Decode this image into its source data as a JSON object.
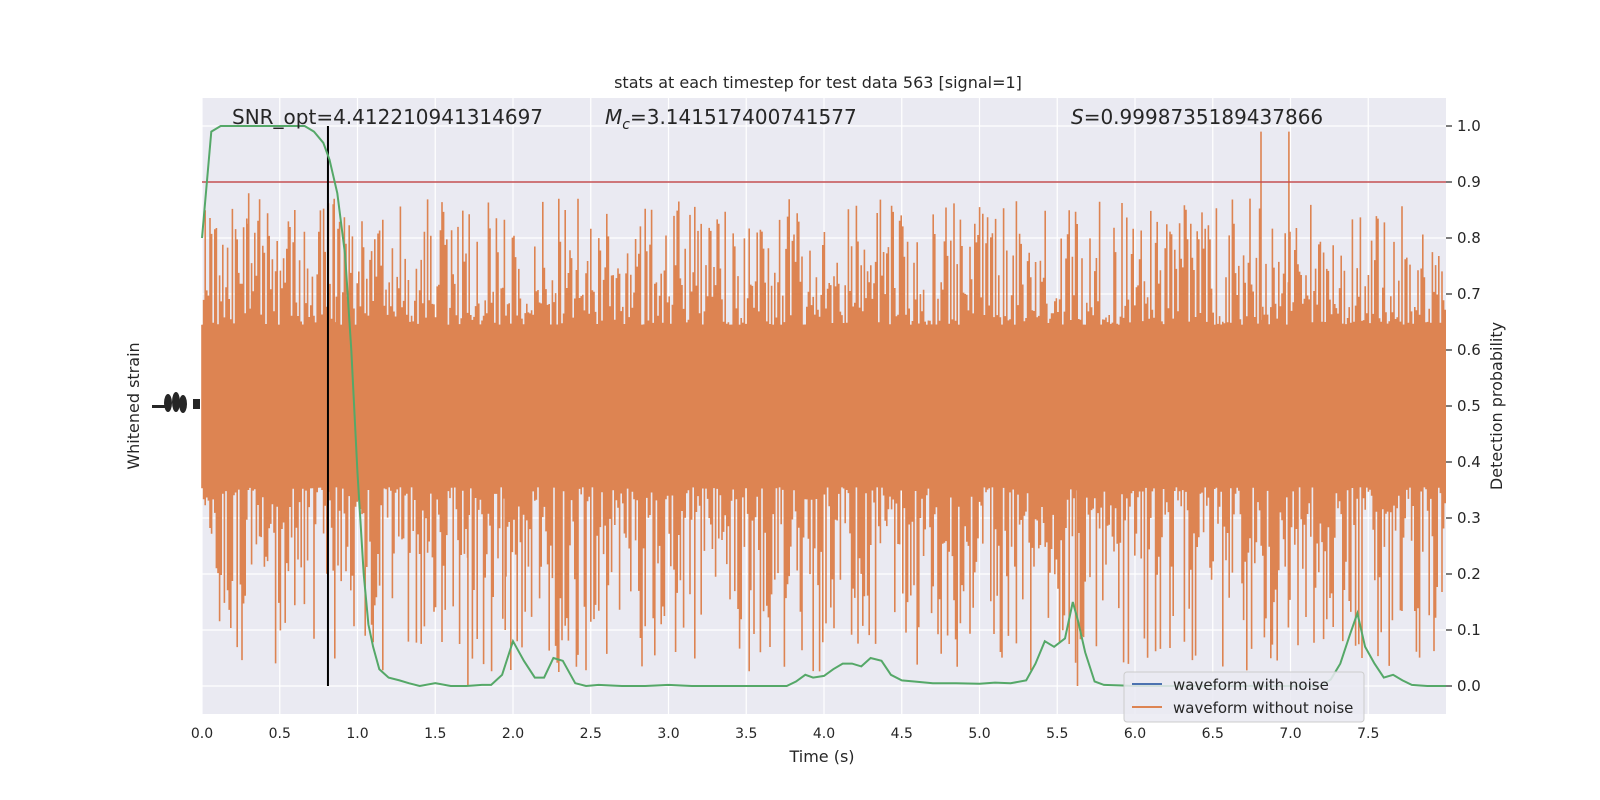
{
  "chart_data": {
    "type": "line",
    "title": "stats at each timestep for test data 563 [signal=1]",
    "xlabel": "Time (s)",
    "ylabel_left": "Whitened strain",
    "ylabel_right": "Detection probability",
    "annotations": {
      "snr": "SNR_opt=4.412210941314697",
      "mc_symbol": "M",
      "mc_sub": "c",
      "mc_value": "=3.141517400741577",
      "s_symbol": "S",
      "s_value": "=0.9998735189437866"
    },
    "xlim": [
      0.0,
      8.0
    ],
    "x_ticks": [
      "0.0",
      "0.5",
      "1.0",
      "1.5",
      "2.0",
      "2.5",
      "3.0",
      "3.5",
      "4.0",
      "4.5",
      "5.0",
      "5.5",
      "6.0",
      "6.5",
      "7.0",
      "7.5"
    ],
    "right_ylim": [
      -0.05,
      1.05
    ],
    "right_ticks": [
      "0.0",
      "0.1",
      "0.2",
      "0.3",
      "0.4",
      "0.5",
      "0.6",
      "0.7",
      "0.8",
      "0.9",
      "1.0"
    ],
    "threshold": 0.9,
    "marker_time": 0.81,
    "grid": true,
    "legend": {
      "position": "lower right",
      "entries": [
        {
          "label": "waveform with noise",
          "color": "#4c72b0"
        },
        {
          "label": "waveform without noise",
          "color": "#dd8452"
        }
      ]
    },
    "colors": {
      "background": "#eaeaf2",
      "noise_band": "#dd8452",
      "probability": "#55a868",
      "threshold": "#c44e52",
      "marker": "#000000"
    },
    "probability_series": {
      "name": "Detection probability",
      "x": [
        0.0,
        0.06,
        0.12,
        0.2,
        0.3,
        0.4,
        0.5,
        0.6,
        0.66,
        0.72,
        0.78,
        0.82,
        0.87,
        0.92,
        0.96,
        1.0,
        1.04,
        1.07,
        1.1,
        1.14,
        1.2,
        1.27,
        1.33,
        1.4,
        1.5,
        1.6,
        1.7,
        1.8,
        1.86,
        1.93,
        2.0,
        2.07,
        2.14,
        2.2,
        2.26,
        2.32,
        2.4,
        2.47,
        2.55,
        2.7,
        2.85,
        3.0,
        3.15,
        3.3,
        3.5,
        3.65,
        3.76,
        3.82,
        3.88,
        3.93,
        4.0,
        4.06,
        4.12,
        4.18,
        4.24,
        4.3,
        4.37,
        4.43,
        4.5,
        4.58,
        4.7,
        4.85,
        5.0,
        5.1,
        5.2,
        5.3,
        5.36,
        5.42,
        5.48,
        5.55,
        5.6,
        5.63,
        5.68,
        5.74,
        5.8,
        5.9,
        6.0,
        6.3,
        6.6,
        6.9,
        7.1,
        7.2,
        7.26,
        7.32,
        7.38,
        7.43,
        7.48,
        7.54,
        7.6,
        7.66,
        7.72,
        7.78,
        7.88,
        8.0
      ],
      "y": [
        0.8,
        0.99,
        1.0,
        1.0,
        1.0,
        1.0,
        1.0,
        1.0,
        1.0,
        0.99,
        0.97,
        0.94,
        0.88,
        0.77,
        0.6,
        0.38,
        0.2,
        0.11,
        0.07,
        0.03,
        0.015,
        0.01,
        0.005,
        0.0,
        0.005,
        0.0,
        0.0,
        0.002,
        0.002,
        0.02,
        0.08,
        0.045,
        0.015,
        0.015,
        0.05,
        0.045,
        0.005,
        0.0,
        0.002,
        0.0,
        0.0,
        0.002,
        0.0,
        0.0,
        0.0,
        0.0,
        0.0,
        0.008,
        0.02,
        0.015,
        0.018,
        0.03,
        0.04,
        0.04,
        0.035,
        0.05,
        0.045,
        0.02,
        0.01,
        0.008,
        0.005,
        0.005,
        0.004,
        0.006,
        0.005,
        0.01,
        0.04,
        0.08,
        0.07,
        0.085,
        0.15,
        0.12,
        0.06,
        0.008,
        0.002,
        0.001,
        0.0,
        0.0,
        0.0,
        0.0,
        0.0,
        0.0,
        0.012,
        0.04,
        0.09,
        0.13,
        0.07,
        0.04,
        0.015,
        0.02,
        0.01,
        0.002,
        0.0,
        0.0
      ]
    }
  }
}
